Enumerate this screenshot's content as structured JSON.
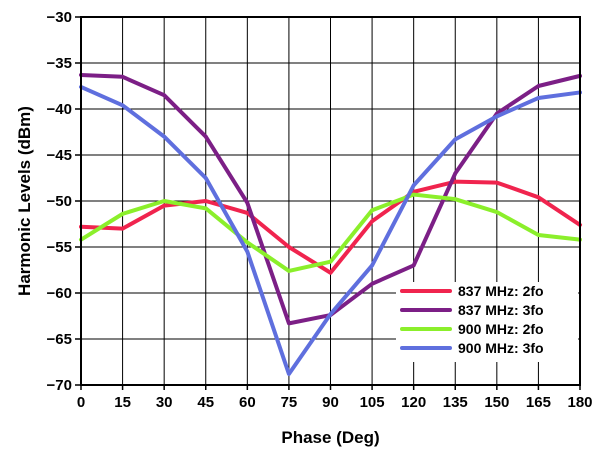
{
  "chart_data": {
    "type": "line",
    "title": "",
    "xlabel": "Phase (Deg)",
    "ylabel": "Harmonic Levels (dBm)",
    "x": [
      0,
      15,
      30,
      45,
      60,
      75,
      90,
      105,
      120,
      135,
      150,
      165,
      180
    ],
    "xlim": [
      0,
      180
    ],
    "ylim": [
      -70,
      -30
    ],
    "xticks": [
      0,
      15,
      30,
      45,
      60,
      75,
      90,
      105,
      120,
      135,
      150,
      165,
      180
    ],
    "yticks": [
      -70,
      -65,
      -60,
      -55,
      -50,
      -45,
      -40,
      -35,
      -30
    ],
    "xtick_labels": [
      "0",
      "15",
      "30",
      "45",
      "60",
      "75",
      "90",
      "105",
      "120",
      "135",
      "150",
      "165",
      "180"
    ],
    "ytick_labels": [
      "−70",
      "−65",
      "−60",
      "−55",
      "−50",
      "−45",
      "−40",
      "−35",
      "−30"
    ],
    "grid": true,
    "legend_position": "bottom-right",
    "series": [
      {
        "name": "837 MHz: 2fo",
        "color": "#f0244e",
        "values": [
          -52.8,
          -53.0,
          -50.5,
          -50.0,
          -51.3,
          -55.0,
          -57.8,
          -52.2,
          -49.0,
          -47.9,
          -48.0,
          -49.6,
          -52.6
        ]
      },
      {
        "name": "837 MHz: 3fo",
        "color": "#7c1f86",
        "values": [
          -36.3,
          -36.5,
          -38.5,
          -43.0,
          -50.2,
          -63.3,
          -62.4,
          -59.0,
          -57.0,
          -47.0,
          -40.5,
          -37.5,
          -36.4
        ]
      },
      {
        "name": "900 MHz: 2fo",
        "color": "#8bef2b",
        "values": [
          -54.2,
          -51.4,
          -50.0,
          -50.8,
          -54.5,
          -57.6,
          -56.6,
          -51.0,
          -49.3,
          -49.8,
          -51.2,
          -53.7,
          -54.2
        ]
      },
      {
        "name": "900 MHz: 3fo",
        "color": "#5f6fde",
        "values": [
          -37.6,
          -39.6,
          -43.0,
          -47.5,
          -55.5,
          -68.8,
          -62.3,
          -57.0,
          -48.3,
          -43.3,
          -40.8,
          -38.8,
          -38.2
        ]
      }
    ]
  }
}
